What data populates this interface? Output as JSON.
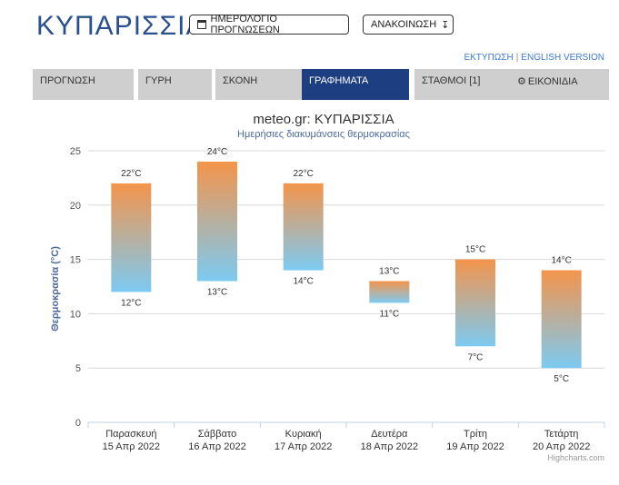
{
  "page": {
    "city_title": "ΚΥΠΑΡΙΣΣΙΑ"
  },
  "top_buttons": {
    "calendar_label": "ΗΜΕΡΟΛΟΓΙΟ ΠΡΟΓΝΩΣΕΩΝ",
    "announce_label": "ΑΝΑΚΟΙΝΩΣΗ"
  },
  "top_links": {
    "print_label": "ΕΚΤΥΠΩΣΗ",
    "english_label": "ENGLISH VERSION",
    "separator": "|"
  },
  "tabs": [
    {
      "label": "ΠΡΟΓΝΩΣΗ",
      "active": false
    },
    {
      "label": "ΓΥΡΗ",
      "active": false
    },
    {
      "label": "ΣΚΟΝΗ",
      "active": false
    },
    {
      "label": "ΓΡΑΦΗΜΑΤΑ",
      "active": true
    },
    {
      "label": "ΣΤΑΘΜΟΙ [1]",
      "active": false
    },
    {
      "label": "ΕΙΚΟΝΙΔΙΑ",
      "active": false
    }
  ],
  "colors": {
    "title": "#2a4f8f",
    "active_tab": "#1d3f82",
    "inactive_tab": "#cfcfcf",
    "bar_top": "#f4944b",
    "bar_bottom": "#7ccaf2",
    "axis_label": "#4c6a9c"
  },
  "chart_data": {
    "type": "columnrange",
    "title": "meteo.gr: ΚΥΠΑΡΙΣΣΙΑ",
    "subtitle": "Ημερήσιες διακυμάνσεις θερμοκρασίας",
    "ylabel": "Θερμοκρασία (°C)",
    "ylim": [
      0,
      25
    ],
    "yticks": [
      "0",
      "5",
      "10",
      "15",
      "20",
      "25"
    ],
    "grid": true,
    "categories": [
      {
        "day": "Παρασκευή",
        "date": "15 Απρ 2022"
      },
      {
        "day": "Σάββατο",
        "date": "16 Απρ 2022"
      },
      {
        "day": "Κυριακή",
        "date": "17 Απρ 2022"
      },
      {
        "day": "Δευτέρα",
        "date": "18 Απρ 2022"
      },
      {
        "day": "Τρίτη",
        "date": "19 Απρ 2022"
      },
      {
        "day": "Τετάρτη",
        "date": "20 Απρ 2022"
      }
    ],
    "series": [
      {
        "low": [
          12,
          13,
          14,
          11,
          7,
          5
        ],
        "high": [
          22,
          24,
          22,
          13,
          15,
          14
        ]
      }
    ],
    "low_labels": [
      "12°C",
      "13°C",
      "14°C",
      "11°C",
      "7°C",
      "5°C"
    ],
    "high_labels": [
      "22°C",
      "24°C",
      "22°C",
      "13°C",
      "15°C",
      "14°C"
    ],
    "credits": "Highcharts.com"
  }
}
